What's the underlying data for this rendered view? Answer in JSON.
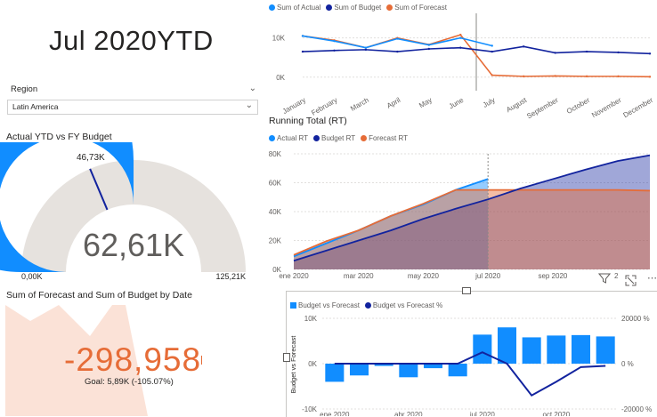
{
  "colors": {
    "actual": "#118DFF",
    "budget": "#12239E",
    "forecast": "#E66C37",
    "gauge_bg": "#E6E2DE",
    "kpi_red": "#E66C37"
  },
  "header": {
    "title": "Jul 2020YTD"
  },
  "slicer": {
    "label": "Region",
    "value": "Latin America",
    "chevron_icon": "chevron-down-icon"
  },
  "gauge": {
    "title": "Actual YTD vs FY Budget",
    "value_label": "62,61K",
    "target_label": "46,73K",
    "min_label": "0,00K",
    "max_label": "125,21K",
    "value": 62610,
    "target": 46730,
    "min": 0,
    "max": 125210
  },
  "kpi": {
    "title": "Sum of Forecast and Sum of Budget by Date",
    "value": "-298,958",
    "goal": "Goal: 5,89K (-105.07%)",
    "trend_value_fraction": 0.6
  },
  "chart_top": {
    "legend": [
      "Sum of Actual",
      "Sum of Budget",
      "Sum of Forecast"
    ],
    "y_ticks": [
      "10K",
      "0K"
    ],
    "x_ticks": [
      "January",
      "February",
      "March",
      "April",
      "May",
      "June",
      "July",
      "August",
      "September",
      "October",
      "November",
      "December"
    ]
  },
  "chart_rt": {
    "title": "Running Total (RT)",
    "legend": [
      "Actual RT",
      "Budget RT",
      "Forecast RT"
    ],
    "y_ticks": [
      "80K",
      "60K",
      "40K",
      "20K",
      "0K"
    ],
    "x_ticks": [
      "ene 2020",
      "mar 2020",
      "may 2020",
      "jul 2020",
      "sep 2020"
    ],
    "filter_icon": "filter-icon",
    "filter_count": "2",
    "focus_icon": "focus-mode-icon",
    "more_icon": "more-options-icon"
  },
  "chart_bvf": {
    "legend": [
      "Budget vs Forecast",
      "Budget vs Forecast %"
    ],
    "y_ticks": [
      "10K",
      "0K",
      "-10K"
    ],
    "y2_ticks": [
      "20000 %",
      "0 %",
      "-20000 %"
    ],
    "y_label": "Budget vs Forecast",
    "x_ticks": [
      "ene 2020",
      "abr 2020",
      "jul 2020",
      "oct 2020"
    ]
  },
  "chart_data": [
    {
      "type": "line",
      "categories": [
        "January",
        "February",
        "March",
        "April",
        "May",
        "June",
        "July",
        "August",
        "September",
        "October",
        "November",
        "December"
      ],
      "series": [
        {
          "name": "Sum of Actual",
          "values": [
            10500,
            9200,
            7500,
            9800,
            8200,
            10000,
            8000,
            null,
            null,
            null,
            null,
            null
          ]
        },
        {
          "name": "Sum of Budget",
          "values": [
            6500,
            6800,
            7000,
            6500,
            7200,
            7500,
            6500,
            7800,
            6200,
            6500,
            6300,
            6000
          ]
        },
        {
          "name": "Sum of Forecast",
          "values": [
            10500,
            9400,
            7500,
            10000,
            8300,
            10800,
            500,
            200,
            300,
            200,
            200,
            100
          ]
        }
      ],
      "ylim": [
        -3000,
        14000
      ]
    },
    {
      "type": "area",
      "title": "Running Total (RT)",
      "x": [
        "ene 2020",
        "feb 2020",
        "mar 2020",
        "abr 2020",
        "may 2020",
        "jun 2020",
        "jul 2020",
        "ago 2020",
        "sep 2020",
        "oct 2020",
        "nov 2020",
        "dic 2020"
      ],
      "series": [
        {
          "name": "Actual RT",
          "values": [
            9000,
            18000,
            27000,
            37000,
            45000,
            55000,
            62610,
            null,
            null,
            null,
            null,
            null
          ]
        },
        {
          "name": "Budget RT",
          "values": [
            6000,
            13000,
            20000,
            27000,
            35000,
            42000,
            48500,
            56000,
            62500,
            69000,
            75000,
            79000
          ]
        },
        {
          "name": "Forecast RT",
          "values": [
            10000,
            19500,
            27000,
            37000,
            45500,
            55000,
            55000,
            55000,
            55000,
            55000,
            55000,
            54500
          ]
        }
      ],
      "ylim": [
        0,
        80000
      ]
    },
    {
      "type": "bar",
      "x": [
        "ene 2020",
        "feb 2020",
        "mar 2020",
        "abr 2020",
        "may 2020",
        "jun 2020",
        "jul 2020",
        "ago 2020",
        "sep 2020",
        "oct 2020",
        "nov 2020",
        "dic 2020"
      ],
      "series": [
        {
          "name": "Budget vs Forecast",
          "values": [
            -4000,
            -2600,
            -500,
            -3000,
            -1000,
            -2800,
            6400,
            8000,
            5800,
            6200,
            6300,
            6000
          ]
        },
        {
          "name": "Budget vs Forecast %",
          "values": [
            0,
            0,
            0,
            0,
            0,
            0,
            5000,
            0,
            -14000,
            -8000,
            -1500,
            -1000
          ]
        }
      ],
      "ylim": [
        -10000,
        10000
      ],
      "y2lim": [
        -20000,
        20000
      ]
    }
  ]
}
